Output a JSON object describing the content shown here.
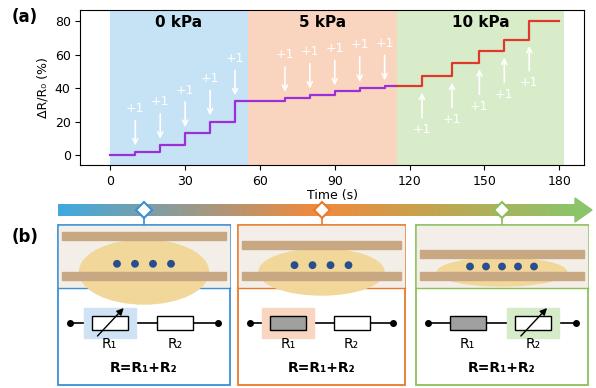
{
  "chart_data": {
    "type": "line",
    "panel_label": "(a)",
    "x_label": "Time (s)",
    "y_label": "ΔR/R₀ (%)",
    "xlim": [
      -12,
      190
    ],
    "ylim": [
      -6,
      87
    ],
    "xticks": [
      0,
      30,
      60,
      90,
      120,
      150,
      180
    ],
    "yticks": [
      0,
      20,
      40,
      60,
      80
    ],
    "line_style": "step",
    "series": [
      {
        "color": "#9b30d9",
        "x": [
          0,
          10,
          20,
          30,
          40,
          50,
          70,
          80,
          90,
          100,
          110,
          115
        ],
        "values": [
          0,
          2,
          6,
          13,
          20,
          32,
          34,
          36,
          38,
          40,
          41,
          41
        ]
      },
      {
        "color": "#e0392b",
        "x": [
          115,
          125,
          137,
          148,
          158,
          168,
          180
        ],
        "values": [
          41,
          47,
          55,
          62,
          69,
          80,
          80
        ]
      }
    ],
    "regions": [
      {
        "label": "0 kPa",
        "start": 0,
        "end": 55,
        "color": "#c6e2f5"
      },
      {
        "label": "5 kPa",
        "start": 55,
        "end": 115,
        "color": "#f9d4bf"
      },
      {
        "label": "10 kPa",
        "start": 115,
        "end": 182,
        "color": "#d8ecca"
      }
    ],
    "annotations": [
      {
        "text": "+1",
        "x": 10,
        "y": 4,
        "direction": "down"
      },
      {
        "text": "+1",
        "x": 20,
        "y": 8,
        "direction": "down"
      },
      {
        "text": "+1",
        "x": 30,
        "y": 15,
        "direction": "down"
      },
      {
        "text": "+1",
        "x": 40,
        "y": 22,
        "direction": "down"
      },
      {
        "text": "+1",
        "x": 50,
        "y": 34,
        "direction": "down"
      },
      {
        "text": "+1",
        "x": 70,
        "y": 36,
        "direction": "down"
      },
      {
        "text": "+1",
        "x": 80,
        "y": 38,
        "direction": "down"
      },
      {
        "text": "+1",
        "x": 90,
        "y": 40,
        "direction": "down"
      },
      {
        "text": "+1",
        "x": 100,
        "y": 42,
        "direction": "down"
      },
      {
        "text": "+1",
        "x": 110,
        "y": 43,
        "direction": "down"
      },
      {
        "text": "+1",
        "x": 125,
        "y": 39,
        "direction": "up"
      },
      {
        "text": "+1",
        "x": 137,
        "y": 45,
        "direction": "up"
      },
      {
        "text": "+1",
        "x": 148,
        "y": 53,
        "direction": "up"
      },
      {
        "text": "+1",
        "x": 158,
        "y": 60,
        "direction": "up"
      },
      {
        "text": "+1",
        "x": 168,
        "y": 67,
        "direction": "up"
      }
    ]
  },
  "diagram": {
    "panel_label": "(b)",
    "states": [
      {
        "frame_color": "#3a8fd6",
        "highlight": "R₁",
        "highlight_color": "#cfe3f5",
        "variable": "R₁",
        "filled": [],
        "resistors": [
          "R₁",
          "R₂"
        ],
        "equation": "R=R₁+R₂"
      },
      {
        "frame_color": "#e87a2d",
        "highlight": "R₁",
        "highlight_color": "#f9d6c0",
        "variable": null,
        "filled": [
          "R₁"
        ],
        "resistors": [
          "R₁",
          "R₂"
        ],
        "equation": "R=R₁+R₂"
      },
      {
        "frame_color": "#8cbf5a",
        "highlight": "R₂",
        "highlight_color": "#d6ebc8",
        "variable": "R₂",
        "filled": [
          "R₁"
        ],
        "resistors": [
          "R₁",
          "R₂"
        ],
        "equation": "R=R₁+R₂"
      }
    ]
  }
}
